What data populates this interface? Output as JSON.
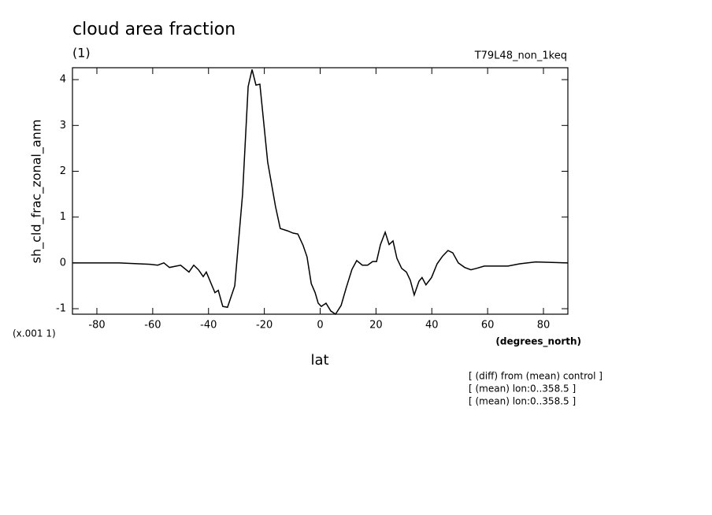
{
  "chart_data": {
    "type": "line",
    "title": "cloud area fraction",
    "subtitle": "(1)",
    "run_label": "T79L48_non_1keq",
    "y_label": "sh_cld_frac_zonal_anm",
    "y_scale_note": "(x.001 1)",
    "x_label": "lat",
    "x_units": "(degrees_north)",
    "notes": [
      "[ (diff) from (mean) control ]",
      "[ (mean) lon:0..358.5 ]",
      "[ (mean) lon:0..358.5 ]"
    ],
    "xlim": [
      -88.75,
      88.75
    ],
    "ylim": [
      -1.12,
      4.26
    ],
    "xticks": [
      -80,
      -60,
      -40,
      -20,
      0,
      20,
      40,
      60,
      80
    ],
    "yticks": [
      -1,
      0,
      1,
      2,
      3,
      4
    ],
    "series": [
      {
        "color": "#000000",
        "x": [
          -88.75,
          -72,
          -61,
          -58.2,
          -56,
          -54,
          -50,
          -47,
          -45.3,
          -43.6,
          -41.9,
          -40.8,
          -37.7,
          -36.5,
          -34.9,
          -33.2,
          -30.6,
          -27.8,
          -25.8,
          -24.4,
          -23,
          -21.6,
          -18.8,
          -16,
          -14.3,
          -11.7,
          -9.7,
          -8,
          -6.1,
          -4.7,
          -3.2,
          -1.8,
          -0.7,
          0.4,
          2.1,
          3.8,
          5.5,
          7.5,
          9.4,
          11.4,
          13.1,
          15.1,
          17,
          18.8,
          20.2,
          21.6,
          23.3,
          24.7,
          26.1,
          27.5,
          29.2,
          30.9,
          32.3,
          33.7,
          35.4,
          36.5,
          37.9,
          39.9,
          41.9,
          43.9,
          45.8,
          47.5,
          49.5,
          51.8,
          54,
          56,
          58.8,
          67.3,
          71.5,
          77.2,
          88.75
        ],
        "values": [
          0,
          0,
          -0.03,
          -0.05,
          0,
          -0.1,
          -0.05,
          -0.2,
          -0.05,
          -0.15,
          -0.3,
          -0.2,
          -0.65,
          -0.6,
          -0.95,
          -0.97,
          -0.5,
          1.5,
          3.85,
          4.22,
          3.88,
          3.9,
          2.2,
          1.23,
          0.75,
          0.7,
          0.65,
          0.63,
          0.38,
          0.13,
          -0.45,
          -0.65,
          -0.88,
          -0.95,
          -0.88,
          -1.05,
          -1.12,
          -0.93,
          -0.53,
          -0.14,
          0.05,
          -0.05,
          -0.05,
          0.03,
          0.03,
          0.4,
          0.67,
          0.4,
          0.48,
          0.1,
          -0.12,
          -0.2,
          -0.38,
          -0.7,
          -0.4,
          -0.32,
          -0.48,
          -0.32,
          -0.02,
          0.15,
          0.27,
          0.22,
          0,
          -0.1,
          -0.15,
          -0.12,
          -0.07,
          -0.07,
          -0.02,
          0.02,
          0
        ]
      }
    ]
  }
}
